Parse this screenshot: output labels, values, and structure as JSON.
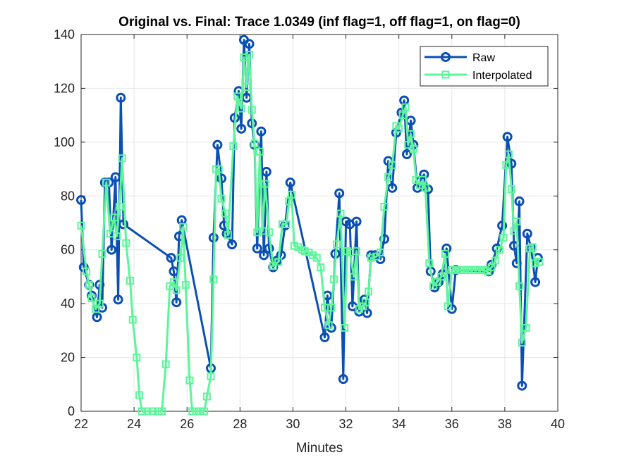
{
  "chart_data": {
    "type": "line",
    "title": "Original vs. Final: Trace 1.0349 (inf flag=1, off flag=1, on flag=0)",
    "xlabel": "Minutes",
    "ylabel": "",
    "xlim": [
      22,
      40
    ],
    "ylim": [
      0,
      140
    ],
    "xticks": [
      22,
      24,
      26,
      28,
      30,
      32,
      34,
      36,
      38,
      40
    ],
    "yticks": [
      0,
      20,
      40,
      60,
      80,
      100,
      120,
      140
    ],
    "grid": true,
    "legend_position": "top-right",
    "series": [
      {
        "name": "Raw",
        "color": "#0a4fb3",
        "marker": "circle",
        "points": [
          [
            22.0,
            78.5
          ],
          [
            22.1,
            53.5
          ],
          [
            22.3,
            47.0
          ],
          [
            22.4,
            43.0
          ],
          [
            22.6,
            35.0
          ],
          [
            22.7,
            47.0
          ],
          [
            22.8,
            38.5
          ],
          [
            22.9,
            85.0
          ],
          [
            23.05,
            85.0
          ],
          [
            23.15,
            60.0
          ],
          [
            23.3,
            87.0
          ],
          [
            23.4,
            41.5
          ],
          [
            23.5,
            116.5
          ],
          [
            23.6,
            69.5
          ],
          [
            25.4,
            57.0
          ],
          [
            25.5,
            52.0
          ],
          [
            25.6,
            40.5
          ],
          [
            25.7,
            65.0
          ],
          [
            25.8,
            71.0
          ],
          [
            26.9,
            16.0
          ],
          [
            27.0,
            64.5
          ],
          [
            27.15,
            99.0
          ],
          [
            27.3,
            86.5
          ],
          [
            27.4,
            69.0
          ],
          [
            27.5,
            66.0
          ],
          [
            27.7,
            62.0
          ],
          [
            27.8,
            109.0
          ],
          [
            27.95,
            119.0
          ],
          [
            28.05,
            105.0
          ],
          [
            28.15,
            138.0
          ],
          [
            28.25,
            116.5
          ],
          [
            28.35,
            136.5
          ],
          [
            28.45,
            107.0
          ],
          [
            28.55,
            99.0
          ],
          [
            28.65,
            60.5
          ],
          [
            28.8,
            104.0
          ],
          [
            28.9,
            58.0
          ],
          [
            29.0,
            89.0
          ],
          [
            29.1,
            60.5
          ],
          [
            29.25,
            53.5
          ],
          [
            29.4,
            56.0
          ],
          [
            29.55,
            58.0
          ],
          [
            29.7,
            69.0
          ],
          [
            29.9,
            85.0
          ],
          [
            31.2,
            27.5
          ],
          [
            31.3,
            43.0
          ],
          [
            31.45,
            31.0
          ],
          [
            31.6,
            58.5
          ],
          [
            31.75,
            81.0
          ],
          [
            31.9,
            12.0
          ],
          [
            32.0,
            70.5
          ],
          [
            32.15,
            69.5
          ],
          [
            32.25,
            39.0
          ],
          [
            32.4,
            70.5
          ],
          [
            32.5,
            37.0
          ],
          [
            32.7,
            41.5
          ],
          [
            32.8,
            36.5
          ],
          [
            32.95,
            58.0
          ],
          [
            33.1,
            58.0
          ],
          [
            33.3,
            56.5
          ],
          [
            33.45,
            64.0
          ],
          [
            33.6,
            93.0
          ],
          [
            33.75,
            83.0
          ],
          [
            33.9,
            103.5
          ],
          [
            34.1,
            111.0
          ],
          [
            34.2,
            115.5
          ],
          [
            34.3,
            95.5
          ],
          [
            34.45,
            108.0
          ],
          [
            34.55,
            99.0
          ],
          [
            34.7,
            83.0
          ],
          [
            34.8,
            85.5
          ],
          [
            34.95,
            88.0
          ],
          [
            35.1,
            82.5
          ],
          [
            35.2,
            52.0
          ],
          [
            35.35,
            46.0
          ],
          [
            35.5,
            48.0
          ],
          [
            35.65,
            51.0
          ],
          [
            35.8,
            60.5
          ],
          [
            36.0,
            38.0
          ],
          [
            36.15,
            52.5
          ],
          [
            37.4,
            52.0
          ],
          [
            37.5,
            54.5
          ],
          [
            37.7,
            60.5
          ],
          [
            37.9,
            69.0
          ],
          [
            38.1,
            102.0
          ],
          [
            38.25,
            92.0
          ],
          [
            38.35,
            61.5
          ],
          [
            38.45,
            55.0
          ],
          [
            38.55,
            78.0
          ],
          [
            38.65,
            9.5
          ],
          [
            38.85,
            66.0
          ],
          [
            39.0,
            60.5
          ],
          [
            39.15,
            48.0
          ],
          [
            39.25,
            57.0
          ]
        ]
      },
      {
        "name": "Interpolated",
        "color": "#5cf59a",
        "marker": "square",
        "points": [
          [
            22.0,
            69.0
          ],
          [
            22.2,
            52.0
          ],
          [
            22.3,
            47.0
          ],
          [
            22.4,
            42.0
          ],
          [
            22.55,
            38.0
          ],
          [
            22.7,
            40.0
          ],
          [
            22.8,
            58.5
          ],
          [
            22.95,
            85.0
          ],
          [
            23.1,
            66.0
          ],
          [
            23.25,
            72.0
          ],
          [
            23.35,
            65.0
          ],
          [
            23.45,
            76.0
          ],
          [
            23.55,
            94.0
          ],
          [
            23.7,
            62.5
          ],
          [
            23.85,
            48.5
          ],
          [
            23.95,
            34.0
          ],
          [
            24.1,
            20.0
          ],
          [
            24.2,
            6.0
          ],
          [
            24.3,
            0.0
          ],
          [
            24.5,
            0.0
          ],
          [
            24.7,
            0.0
          ],
          [
            24.9,
            0.0
          ],
          [
            25.05,
            0.0
          ],
          [
            25.2,
            17.5
          ],
          [
            25.35,
            46.5
          ],
          [
            25.5,
            48.0
          ],
          [
            25.6,
            45.0
          ],
          [
            25.75,
            57.0
          ],
          [
            25.85,
            68.5
          ],
          [
            25.95,
            47.0
          ],
          [
            26.1,
            11.5
          ],
          [
            26.2,
            0.0
          ],
          [
            26.35,
            0.0
          ],
          [
            26.5,
            0.0
          ],
          [
            26.65,
            0.0
          ],
          [
            26.75,
            5.5
          ],
          [
            26.9,
            13.0
          ],
          [
            27.0,
            49.0
          ],
          [
            27.1,
            90.0
          ],
          [
            27.2,
            90.0
          ],
          [
            27.3,
            79.0
          ],
          [
            27.45,
            73.5
          ],
          [
            27.55,
            65.5
          ],
          [
            27.75,
            98.5
          ],
          [
            27.9,
            117.0
          ],
          [
            28.05,
            112.5
          ],
          [
            28.15,
            131.5
          ],
          [
            28.25,
            120.5
          ],
          [
            28.35,
            132.5
          ],
          [
            28.45,
            112.0
          ],
          [
            28.55,
            99.5
          ],
          [
            28.65,
            66.5
          ],
          [
            28.75,
            96.5
          ],
          [
            28.85,
            67.0
          ],
          [
            28.95,
            84.5
          ],
          [
            29.1,
            66.5
          ],
          [
            29.25,
            54.0
          ],
          [
            29.45,
            55.5
          ],
          [
            29.6,
            69.5
          ],
          [
            29.75,
            69.5
          ],
          [
            29.85,
            78.0
          ],
          [
            29.95,
            80.5
          ],
          [
            30.05,
            61.5
          ],
          [
            30.2,
            61.0
          ],
          [
            30.35,
            60.0
          ],
          [
            30.45,
            59.5
          ],
          [
            30.6,
            59.0
          ],
          [
            30.75,
            58.0
          ],
          [
            30.9,
            57.0
          ],
          [
            31.05,
            53.5
          ],
          [
            31.2,
            38.5
          ],
          [
            31.35,
            32.0
          ],
          [
            31.45,
            38.5
          ],
          [
            31.55,
            49.0
          ],
          [
            31.65,
            62.0
          ],
          [
            31.8,
            73.5
          ],
          [
            31.95,
            31.0
          ],
          [
            32.05,
            59.5
          ],
          [
            32.15,
            59.0
          ],
          [
            32.3,
            50.0
          ],
          [
            32.4,
            59.5
          ],
          [
            32.5,
            38.0
          ],
          [
            32.65,
            39.0
          ],
          [
            32.75,
            40.5
          ],
          [
            32.85,
            44.5
          ],
          [
            32.95,
            57.0
          ],
          [
            33.15,
            57.5
          ],
          [
            33.3,
            59.0
          ],
          [
            33.45,
            76.0
          ],
          [
            33.6,
            87.0
          ],
          [
            33.75,
            91.5
          ],
          [
            33.9,
            106.0
          ],
          [
            34.0,
            105.0
          ],
          [
            34.15,
            110.0
          ],
          [
            34.25,
            113.0
          ],
          [
            34.35,
            99.0
          ],
          [
            34.45,
            103.0
          ],
          [
            34.55,
            97.5
          ],
          [
            34.65,
            86.0
          ],
          [
            34.8,
            84.0
          ],
          [
            34.9,
            86.0
          ],
          [
            35.0,
            83.0
          ],
          [
            35.15,
            55.0
          ],
          [
            35.3,
            46.5
          ],
          [
            35.45,
            48.0
          ],
          [
            35.6,
            50.0
          ],
          [
            35.75,
            58.5
          ],
          [
            35.85,
            39.0
          ],
          [
            36.0,
            52.5
          ],
          [
            36.15,
            52.5
          ],
          [
            36.3,
            52.5
          ],
          [
            36.45,
            52.5
          ],
          [
            36.6,
            52.5
          ],
          [
            36.75,
            52.5
          ],
          [
            36.9,
            52.5
          ],
          [
            37.05,
            52.5
          ],
          [
            37.2,
            52.5
          ],
          [
            37.35,
            52.0
          ],
          [
            37.5,
            53.5
          ],
          [
            37.65,
            56.0
          ],
          [
            37.8,
            60.0
          ],
          [
            37.95,
            64.5
          ],
          [
            38.05,
            91.5
          ],
          [
            38.15,
            95.5
          ],
          [
            38.25,
            82.5
          ],
          [
            38.35,
            67.0
          ],
          [
            38.45,
            70.5
          ],
          [
            38.55,
            46.5
          ],
          [
            38.65,
            25.5
          ],
          [
            38.8,
            31.0
          ],
          [
            38.95,
            60.5
          ],
          [
            39.05,
            61.0
          ],
          [
            39.15,
            55.0
          ],
          [
            39.3,
            55.5
          ]
        ]
      }
    ]
  }
}
